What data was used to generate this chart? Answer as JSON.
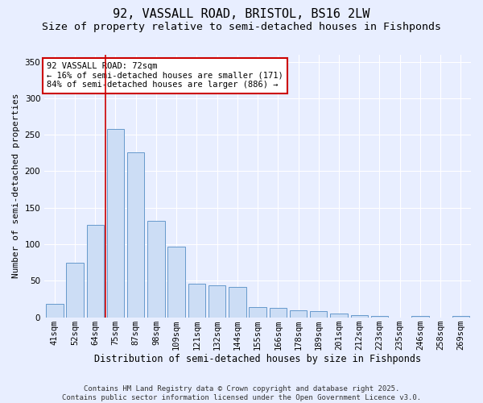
{
  "title1": "92, VASSALL ROAD, BRISTOL, BS16 2LW",
  "title2": "Size of property relative to semi-detached houses in Fishponds",
  "xlabel": "Distribution of semi-detached houses by size in Fishponds",
  "ylabel": "Number of semi-detached properties",
  "categories": [
    "41sqm",
    "52sqm",
    "64sqm",
    "75sqm",
    "87sqm",
    "98sqm",
    "109sqm",
    "121sqm",
    "132sqm",
    "144sqm",
    "155sqm",
    "166sqm",
    "178sqm",
    "189sqm",
    "201sqm",
    "212sqm",
    "223sqm",
    "235sqm",
    "246sqm",
    "258sqm",
    "269sqm"
  ],
  "values": [
    18,
    75,
    127,
    258,
    226,
    132,
    97,
    46,
    44,
    42,
    14,
    13,
    10,
    8,
    5,
    3,
    2,
    0,
    2,
    0,
    2
  ],
  "bar_color": "#ccddf5",
  "bar_edge_color": "#6699cc",
  "bg_color": "#e8eeff",
  "grid_color": "#ffffff",
  "annotation_box_text": "92 VASSALL ROAD: 72sqm\n← 16% of semi-detached houses are smaller (171)\n84% of semi-detached houses are larger (886) →",
  "annotation_box_color": "#ffffff",
  "annotation_box_edge_color": "#cc0000",
  "vline_x": 2.5,
  "vline_color": "#cc0000",
  "ylim": [
    0,
    360
  ],
  "yticks": [
    0,
    50,
    100,
    150,
    200,
    250,
    300,
    350
  ],
  "footnote": "Contains HM Land Registry data © Crown copyright and database right 2025.\nContains public sector information licensed under the Open Government Licence v3.0.",
  "title1_fontsize": 11,
  "title2_fontsize": 9.5,
  "xlabel_fontsize": 8.5,
  "ylabel_fontsize": 8,
  "tick_fontsize": 7.5,
  "annotation_fontsize": 7.5,
  "footnote_fontsize": 6.5
}
